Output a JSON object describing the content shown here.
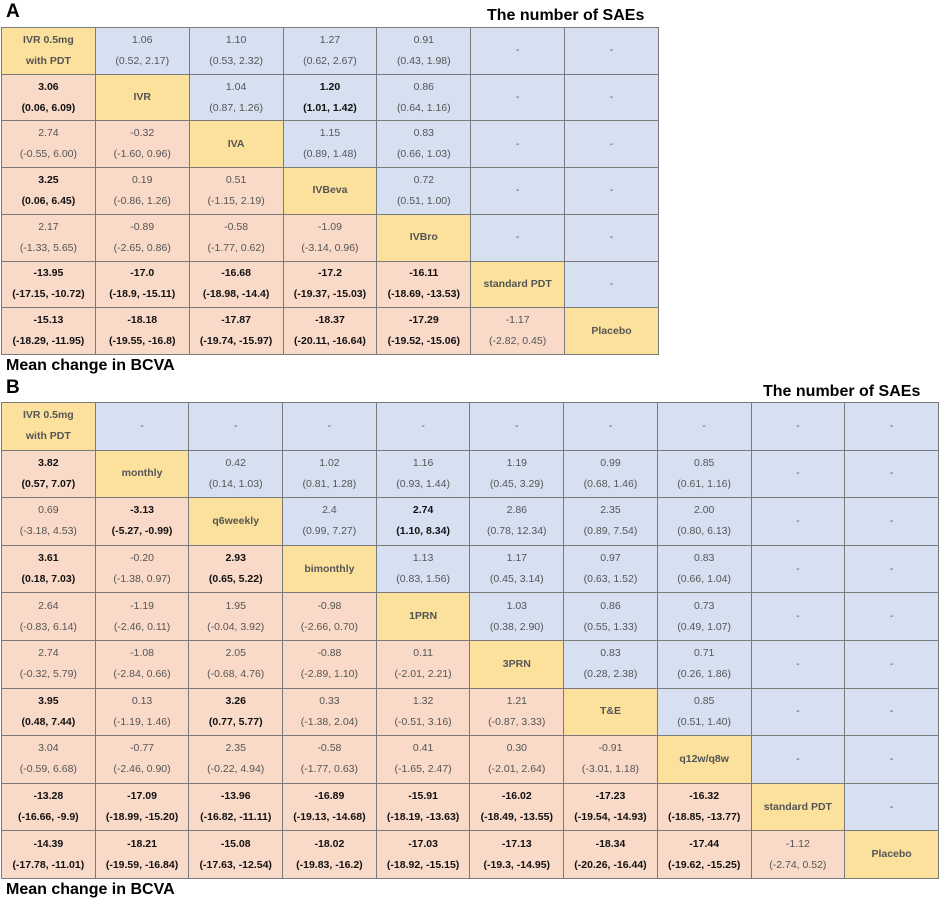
{
  "panelA": {
    "letter": "A",
    "top_title": "The number of SAEs",
    "bottom_title": "Mean change in BCVA",
    "rows": [
      [
        {
          "t": "diag",
          "label": "IVR 0.5mg\nwith PDT"
        },
        {
          "t": "upper",
          "est": "1.06",
          "ci": "(0.52, 2.17)"
        },
        {
          "t": "upper",
          "est": "1.10",
          "ci": "(0.53, 2.32)"
        },
        {
          "t": "upper",
          "est": "1.27",
          "ci": "(0.62, 2.67)"
        },
        {
          "t": "upper",
          "est": "0.91",
          "ci": "(0.43, 1.98)"
        },
        {
          "t": "upper",
          "dash": "-"
        },
        {
          "t": "upper",
          "dash": "-"
        }
      ],
      [
        {
          "t": "lower",
          "est": "3.06",
          "ci": "(0.06, 6.09)",
          "sig": true
        },
        {
          "t": "diag",
          "label": "IVR"
        },
        {
          "t": "upper",
          "est": "1.04",
          "ci": "(0.87, 1.26)"
        },
        {
          "t": "upper",
          "est": "1.20",
          "ci": "(1.01, 1.42)",
          "sig": true
        },
        {
          "t": "upper",
          "est": "0.86",
          "ci": "(0.64, 1.16)"
        },
        {
          "t": "upper",
          "dash": "-"
        },
        {
          "t": "upper",
          "dash": "-"
        }
      ],
      [
        {
          "t": "lower",
          "est": "2.74",
          "ci": "(-0.55, 6.00)"
        },
        {
          "t": "lower",
          "est": "-0.32",
          "ci": "(-1.60, 0.96)"
        },
        {
          "t": "diag",
          "label": "IVA"
        },
        {
          "t": "upper",
          "est": "1.15",
          "ci": "(0.89, 1.48)"
        },
        {
          "t": "upper",
          "est": "0.83",
          "ci": "(0.66, 1.03)"
        },
        {
          "t": "upper",
          "dash": "-"
        },
        {
          "t": "upper",
          "dash": "-"
        }
      ],
      [
        {
          "t": "lower",
          "est": "3.25",
          "ci": "(0.06, 6.45)",
          "sig": true
        },
        {
          "t": "lower",
          "est": "0.19",
          "ci": "(-0.86, 1.26)"
        },
        {
          "t": "lower",
          "est": "0.51",
          "ci": "(-1.15, 2.19)"
        },
        {
          "t": "diag",
          "label": "IVBeva"
        },
        {
          "t": "upper",
          "est": "0.72",
          "ci": "(0.51, 1.00)"
        },
        {
          "t": "upper",
          "dash": "-"
        },
        {
          "t": "upper",
          "dash": "-"
        }
      ],
      [
        {
          "t": "lower",
          "est": "2.17",
          "ci": "(-1.33, 5.65)"
        },
        {
          "t": "lower",
          "est": "-0.89",
          "ci": "(-2.65, 0.86)"
        },
        {
          "t": "lower",
          "est": "-0.58",
          "ci": "(-1.77, 0.62)"
        },
        {
          "t": "lower",
          "est": "-1.09",
          "ci": "(-3.14, 0.96)"
        },
        {
          "t": "diag",
          "label": "IVBro"
        },
        {
          "t": "upper",
          "dash": "-"
        },
        {
          "t": "upper",
          "dash": "-"
        }
      ],
      [
        {
          "t": "lower",
          "est": "-13.95",
          "ci": "(-17.15, -10.72)",
          "sig": true
        },
        {
          "t": "lower",
          "est": "-17.0",
          "ci": "(-18.9, -15.11)",
          "sig": true
        },
        {
          "t": "lower",
          "est": "-16.68",
          "ci": "(-18.98, -14.4)",
          "sig": true
        },
        {
          "t": "lower",
          "est": "-17.2",
          "ci": "(-19.37, -15.03)",
          "sig": true
        },
        {
          "t": "lower",
          "est": "-16.11",
          "ci": "(-18.69, -13.53)",
          "sig": true
        },
        {
          "t": "diag",
          "label": "standard PDT"
        },
        {
          "t": "upper",
          "dash": "-"
        }
      ],
      [
        {
          "t": "lower",
          "est": "-15.13",
          "ci": "(-18.29, -11.95)",
          "sig": true
        },
        {
          "t": "lower",
          "est": "-18.18",
          "ci": "(-19.55, -16.8)",
          "sig": true
        },
        {
          "t": "lower",
          "est": "-17.87",
          "ci": "(-19.74, -15.97)",
          "sig": true
        },
        {
          "t": "lower",
          "est": "-18.37",
          "ci": "(-20.11, -16.64)",
          "sig": true
        },
        {
          "t": "lower",
          "est": "-17.29",
          "ci": "(-19.52, -15.06)",
          "sig": true
        },
        {
          "t": "lower",
          "est": "-1.17",
          "ci": "(-2.82, 0.45)"
        },
        {
          "t": "diag",
          "label": "Placebo"
        }
      ]
    ]
  },
  "panelB": {
    "letter": "B",
    "top_title": "The number of SAEs",
    "bottom_title": "Mean change in BCVA",
    "rows": [
      [
        {
          "t": "diag",
          "label": "IVR 0.5mg\nwith PDT"
        },
        {
          "t": "upper",
          "dash": "-"
        },
        {
          "t": "upper",
          "dash": "-"
        },
        {
          "t": "upper",
          "dash": "-"
        },
        {
          "t": "upper",
          "dash": "-"
        },
        {
          "t": "upper",
          "dash": "-"
        },
        {
          "t": "upper",
          "dash": "-"
        },
        {
          "t": "upper",
          "dash": "-"
        },
        {
          "t": "upper",
          "dash": "-"
        },
        {
          "t": "upper",
          "dash": "-"
        }
      ],
      [
        {
          "t": "lower",
          "est": "3.82",
          "ci": "(0.57, 7.07)",
          "sig": true
        },
        {
          "t": "diag",
          "label": "monthly"
        },
        {
          "t": "upper",
          "est": "0.42",
          "ci": "(0.14, 1.03)"
        },
        {
          "t": "upper",
          "est": "1.02",
          "ci": "(0.81, 1.28)"
        },
        {
          "t": "upper",
          "est": "1.16",
          "ci": "(0.93, 1.44)"
        },
        {
          "t": "upper",
          "est": "1.19",
          "ci": "(0.45, 3.29)"
        },
        {
          "t": "upper",
          "est": "0.99",
          "ci": "(0.68, 1.46)"
        },
        {
          "t": "upper",
          "est": "0.85",
          "ci": "(0.61, 1.16)"
        },
        {
          "t": "upper",
          "dash": "-"
        },
        {
          "t": "upper",
          "dash": "-"
        }
      ],
      [
        {
          "t": "lower",
          "est": "0.69",
          "ci": "(-3.18, 4.53)"
        },
        {
          "t": "lower",
          "est": "-3.13",
          "ci": "(-5.27, -0.99)",
          "sig": true
        },
        {
          "t": "diag",
          "label": "q6weekly"
        },
        {
          "t": "upper",
          "est": "2.4",
          "ci": "(0.99, 7.27)"
        },
        {
          "t": "upper",
          "est": "2.74",
          "ci": "(1.10, 8.34)",
          "sig": true
        },
        {
          "t": "upper",
          "est": "2.86",
          "ci": "(0.78, 12.34)"
        },
        {
          "t": "upper",
          "est": "2.35",
          "ci": "(0.89, 7.54)"
        },
        {
          "t": "upper",
          "est": "2.00",
          "ci": "(0.80, 6.13)"
        },
        {
          "t": "upper",
          "dash": "-"
        },
        {
          "t": "upper",
          "dash": "-"
        }
      ],
      [
        {
          "t": "lower",
          "est": "3.61",
          "ci": "(0.18, 7.03)",
          "sig": true
        },
        {
          "t": "lower",
          "est": "-0.20",
          "ci": "(-1.38, 0.97)"
        },
        {
          "t": "lower",
          "est": "2.93",
          "ci": "(0.65, 5.22)",
          "sig": true
        },
        {
          "t": "diag",
          "label": "bimonthly"
        },
        {
          "t": "upper",
          "est": "1.13",
          "ci": "(0.83, 1.56)"
        },
        {
          "t": "upper",
          "est": "1.17",
          "ci": "(0.45, 3.14)"
        },
        {
          "t": "upper",
          "est": "0.97",
          "ci": "(0.63, 1.52)"
        },
        {
          "t": "upper",
          "est": "0.83",
          "ci": "(0.66, 1.04)"
        },
        {
          "t": "upper",
          "dash": "-"
        },
        {
          "t": "upper",
          "dash": "-"
        }
      ],
      [
        {
          "t": "lower",
          "est": "2.64",
          "ci": "(-0.83, 6.14)"
        },
        {
          "t": "lower",
          "est": "-1.19",
          "ci": "(-2.46, 0.11)"
        },
        {
          "t": "lower",
          "est": "1.95",
          "ci": "(-0.04, 3.92)"
        },
        {
          "t": "lower",
          "est": "-0.98",
          "ci": "(-2.66, 0.70)"
        },
        {
          "t": "diag",
          "label": "1PRN"
        },
        {
          "t": "upper",
          "est": "1.03",
          "ci": "(0.38, 2.90)"
        },
        {
          "t": "upper",
          "est": "0.86",
          "ci": "(0.55, 1.33)"
        },
        {
          "t": "upper",
          "est": "0.73",
          "ci": "(0.49, 1.07)"
        },
        {
          "t": "upper",
          "dash": "-"
        },
        {
          "t": "upper",
          "dash": "-"
        }
      ],
      [
        {
          "t": "lower",
          "est": "2.74",
          "ci": "(-0.32, 5.79)"
        },
        {
          "t": "lower",
          "est": "-1.08",
          "ci": "(-2.84, 0.66)"
        },
        {
          "t": "lower",
          "est": "2.05",
          "ci": "(-0.68, 4.76)"
        },
        {
          "t": "lower",
          "est": "-0.88",
          "ci": "(-2.89, 1.10)"
        },
        {
          "t": "lower",
          "est": "0.11",
          "ci": "(-2.01, 2.21)"
        },
        {
          "t": "diag",
          "label": "3PRN"
        },
        {
          "t": "upper",
          "est": "0.83",
          "ci": "(0.28, 2.38)"
        },
        {
          "t": "upper",
          "est": "0.71",
          "ci": "(0.26, 1.86)"
        },
        {
          "t": "upper",
          "dash": "-"
        },
        {
          "t": "upper",
          "dash": "-"
        }
      ],
      [
        {
          "t": "lower",
          "est": "3.95",
          "ci": "(0.48, 7.44)",
          "sig": true
        },
        {
          "t": "lower",
          "est": "0.13",
          "ci": "(-1.19, 1.46)"
        },
        {
          "t": "lower",
          "est": "3.26",
          "ci": "(0.77, 5.77)",
          "sig": true
        },
        {
          "t": "lower",
          "est": "0.33",
          "ci": "(-1.38, 2.04)"
        },
        {
          "t": "lower",
          "est": "1.32",
          "ci": "(-0.51, 3.16)"
        },
        {
          "t": "lower",
          "est": "1.21",
          "ci": "(-0.87, 3.33)"
        },
        {
          "t": "diag",
          "label": "T&E"
        },
        {
          "t": "upper",
          "est": "0.85",
          "ci": "(0.51, 1.40)"
        },
        {
          "t": "upper",
          "dash": "-"
        },
        {
          "t": "upper",
          "dash": "-"
        }
      ],
      [
        {
          "t": "lower",
          "est": "3.04",
          "ci": "(-0.59, 6.68)"
        },
        {
          "t": "lower",
          "est": "-0.77",
          "ci": "(-2.46, 0.90)"
        },
        {
          "t": "lower",
          "est": "2.35",
          "ci": "(-0.22, 4.94)"
        },
        {
          "t": "lower",
          "est": "-0.58",
          "ci": "(-1.77, 0.63)"
        },
        {
          "t": "lower",
          "est": "0.41",
          "ci": "(-1.65, 2.47)"
        },
        {
          "t": "lower",
          "est": "0.30",
          "ci": "(-2.01, 2.64)"
        },
        {
          "t": "lower",
          "est": "-0.91",
          "ci": "(-3.01, 1.18)"
        },
        {
          "t": "diag",
          "label": "q12w/q8w"
        },
        {
          "t": "upper",
          "dash": "-"
        },
        {
          "t": "upper",
          "dash": "-"
        }
      ],
      [
        {
          "t": "lower",
          "est": "-13.28",
          "ci": "(-16.66, -9.9)",
          "sig": true
        },
        {
          "t": "lower",
          "est": "-17.09",
          "ci": "(-18.99, -15.20)",
          "sig": true
        },
        {
          "t": "lower",
          "est": "-13.96",
          "ci": "(-16.82, -11.11)",
          "sig": true
        },
        {
          "t": "lower",
          "est": "-16.89",
          "ci": "(-19.13, -14.68)",
          "sig": true
        },
        {
          "t": "lower",
          "est": "-15.91",
          "ci": "(-18.19, -13.63)",
          "sig": true
        },
        {
          "t": "lower",
          "est": "-16.02",
          "ci": "(-18.49, -13.55)",
          "sig": true
        },
        {
          "t": "lower",
          "est": "-17.23",
          "ci": "(-19.54, -14.93)",
          "sig": true
        },
        {
          "t": "lower",
          "est": "-16.32",
          "ci": "(-18.85, -13.77)",
          "sig": true
        },
        {
          "t": "diag",
          "label": "standard PDT"
        },
        {
          "t": "upper",
          "dash": "-"
        }
      ],
      [
        {
          "t": "lower",
          "est": "-14.39",
          "ci": "(-17.78, -11.01)",
          "sig": true
        },
        {
          "t": "lower",
          "est": "-18.21",
          "ci": "(-19.59, -16.84)",
          "sig": true
        },
        {
          "t": "lower",
          "est": "-15.08",
          "ci": "(-17.63, -12.54)",
          "sig": true
        },
        {
          "t": "lower",
          "est": "-18.02",
          "ci": "(-19.83, -16.2)",
          "sig": true
        },
        {
          "t": "lower",
          "est": "-17.03",
          "ci": "(-18.92, -15.15)",
          "sig": true
        },
        {
          "t": "lower",
          "est": "-17.13",
          "ci": "(-19.3, -14.95)",
          "sig": true
        },
        {
          "t": "lower",
          "est": "-18.34",
          "ci": "(-20.26, -16.44)",
          "sig": true
        },
        {
          "t": "lower",
          "est": "-17.44",
          "ci": "(-19.62, -15.25)",
          "sig": true
        },
        {
          "t": "lower",
          "est": "-1.12",
          "ci": "(-2.74, 0.52)"
        },
        {
          "t": "diag",
          "label": "Placebo"
        }
      ]
    ]
  }
}
